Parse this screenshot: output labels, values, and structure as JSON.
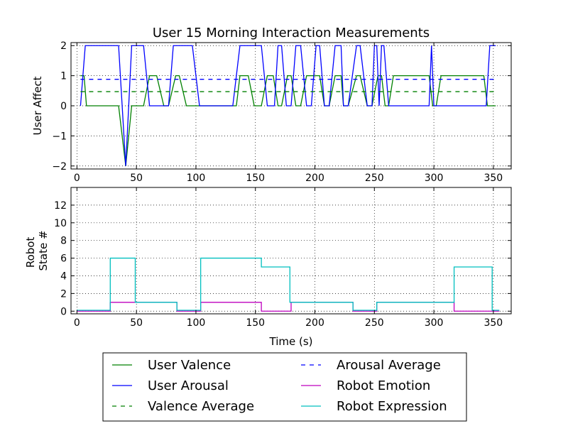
{
  "chart_data": {
    "title": "User 15 Morning Interaction Measurements",
    "xlabel": "Time (s)",
    "x_ticks": [
      0,
      50,
      100,
      150,
      200,
      250,
      300,
      350
    ],
    "x_tick_labels": [
      "0",
      "50",
      "100",
      "150",
      "200",
      "250",
      "300",
      "350"
    ],
    "xlim": [
      -5,
      365
    ],
    "grid": true,
    "legend_position": "below",
    "panels": [
      {
        "type": "line",
        "ylabel": "User Affect",
        "ylim": [
          -2.1,
          2.1
        ],
        "y_ticks": [
          -2,
          -1,
          0,
          1,
          2
        ],
        "y_tick_labels": [
          "−2",
          "−1",
          "0",
          "1",
          "2"
        ],
        "series": [
          {
            "name": "User Valence",
            "color": "#008000",
            "style": "solid",
            "x": [
              3,
              6,
              8,
              35,
              41,
              46,
              53,
              56,
              61,
              67,
              73,
              77,
              83,
              86,
              92,
              97,
              104,
              134,
              137,
              144,
              149,
              155,
              160,
              165,
              169,
              172,
              177,
              180,
              184,
              188,
              193,
              197,
              201,
              204,
              208,
              212,
              217,
              222,
              224,
              228,
              235,
              238,
              244,
              248,
              253,
              256,
              259,
              262,
              266,
              270,
              292,
              296,
              299,
              302,
              306,
              308,
              342,
              345,
              352
            ],
            "y": [
              1,
              1,
              0,
              0,
              -2,
              0,
              0,
              0,
              1,
              1,
              0,
              0,
              1,
              1,
              0,
              0,
              0,
              0,
              1,
              1,
              0,
              0,
              1,
              1,
              0,
              0,
              1,
              1,
              0,
              0,
              1,
              1,
              1,
              1,
              0,
              0,
              1,
              1,
              0,
              0,
              1,
              1,
              0,
              0,
              1,
              1,
              0,
              0,
              1,
              1,
              1,
              1,
              0,
              0,
              1,
              1,
              1,
              0,
              0
            ]
          },
          {
            "name": "User Arousal",
            "color": "#0000ff",
            "style": "solid",
            "x": [
              3,
              7,
              35,
              41,
              46,
              49,
              56,
              61,
              67,
              77,
              81,
              86,
              97,
              103,
              131,
              137,
              155,
              160,
              166,
              169,
              172,
              176,
              180,
              184,
              188,
              193,
              197,
              201,
              204,
              208,
              212,
              217,
              222,
              224,
              228,
              235,
              238,
              244,
              248,
              250,
              252,
              254,
              256,
              258,
              262,
              296,
              298,
              300,
              344,
              347,
              352
            ],
            "y": [
              0,
              2,
              2,
              -2,
              2,
              2,
              2,
              0,
              0,
              0,
              2,
              2,
              2,
              0,
              0,
              2,
              2,
              0,
              0,
              2,
              2,
              0,
              0,
              2,
              2,
              0,
              0,
              2,
              2,
              0,
              0,
              2,
              2,
              0,
              0,
              2,
              2,
              0,
              0,
              2,
              2,
              0,
              2,
              2,
              0,
              0,
              2,
              0,
              0,
              2,
              2
            ]
          },
          {
            "name": "Valence Average",
            "color": "#008000",
            "style": "dashed",
            "x": [
              3,
              352
            ],
            "y": [
              0.47,
              0.47
            ]
          },
          {
            "name": "Arousal Average",
            "color": "#0000ff",
            "style": "dashed",
            "x": [
              3,
              352
            ],
            "y": [
              0.88,
              0.88
            ]
          }
        ]
      },
      {
        "type": "line",
        "ylabel": "Robot\nState #",
        "ylim": [
          -0.3,
          14
        ],
        "y_ticks": [
          0,
          2,
          4,
          6,
          8,
          10,
          12
        ],
        "y_tick_labels": [
          "0",
          "2",
          "4",
          "6",
          "8",
          "10",
          "12"
        ],
        "series": [
          {
            "name": "Robot Emotion",
            "color": "#bf00bf",
            "style": "solid",
            "x": [
              0,
              28,
              28,
              50,
              50,
              84,
              84,
              104,
              104,
              155,
              155,
              180,
              180,
              232,
              232,
              252,
              252,
              317,
              317,
              350,
              350,
              355
            ],
            "y": [
              0,
              0,
              1,
              1,
              1,
              1,
              0,
              0,
              1,
              1,
              0,
              0,
              1,
              1,
              0,
              0,
              1,
              1,
              0,
              0,
              0,
              0
            ]
          },
          {
            "name": "Robot Expression",
            "color": "#00bfbf",
            "style": "solid",
            "x": [
              0,
              28,
              28,
              49,
              49,
              84,
              84,
              104,
              104,
              155,
              155,
              179,
              179,
              232,
              232,
              252,
              252,
              317,
              317,
              349,
              349,
              355
            ],
            "y": [
              0.1,
              0.1,
              6,
              6,
              1,
              1,
              0.1,
              0.1,
              6,
              6,
              5,
              5,
              1,
              1,
              0.1,
              0.1,
              1,
              1,
              5,
              5,
              0.1,
              0.1
            ]
          }
        ]
      }
    ],
    "legend": [
      "User Valence",
      "User Arousal",
      "Valence Average",
      "Arousal Average",
      "Robot Emotion",
      "Robot Expression"
    ]
  }
}
